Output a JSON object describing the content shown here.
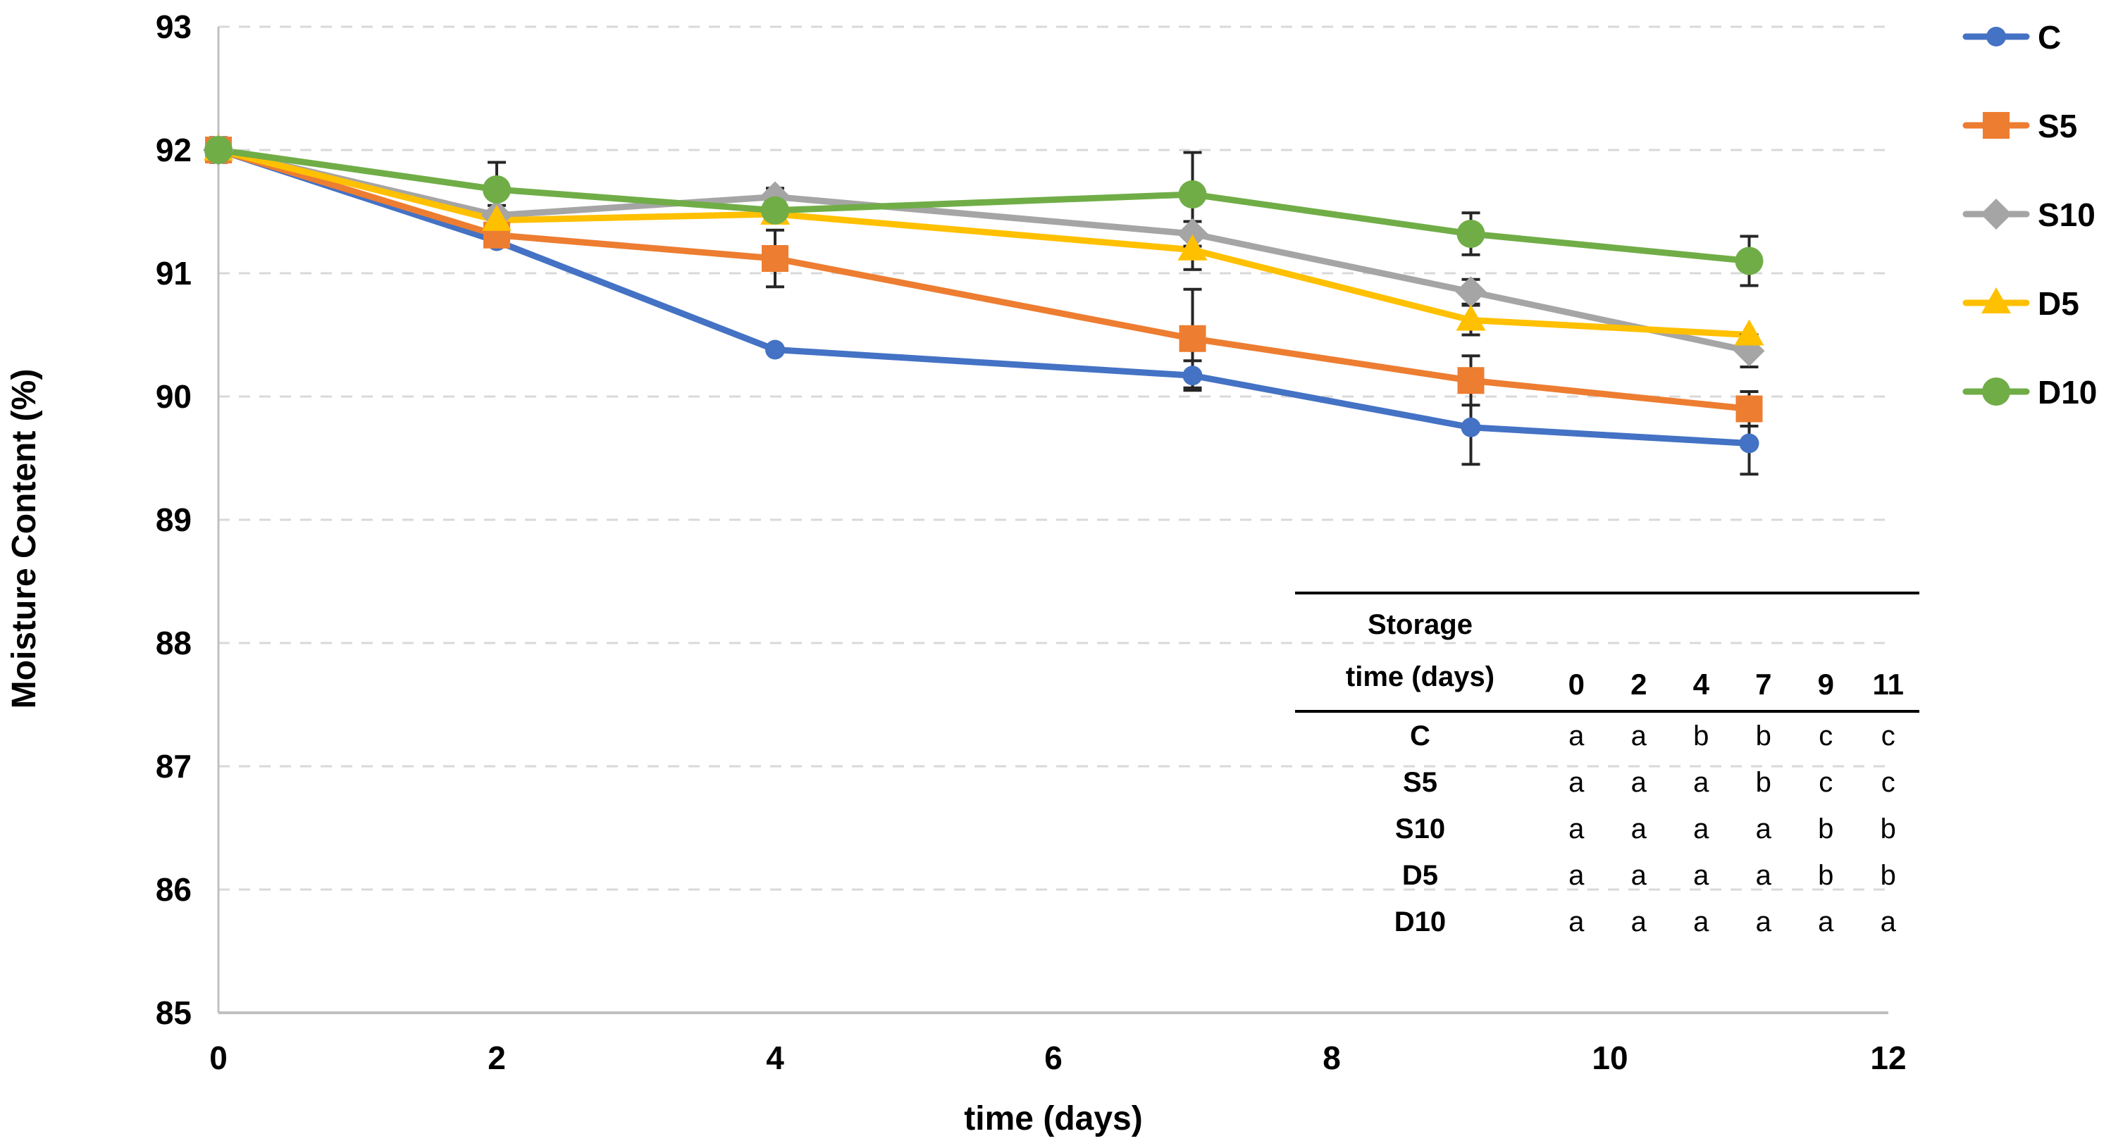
{
  "chart_data": {
    "type": "line",
    "title": "",
    "xlabel": "time (days)",
    "ylabel": "Moisture Content (%)",
    "xlim": [
      0,
      12
    ],
    "ylim": [
      85,
      93
    ],
    "x_ticks": [
      "0",
      "2",
      "4",
      "6",
      "8",
      "10",
      "12"
    ],
    "y_ticks": [
      "85",
      "86",
      "87",
      "88",
      "89",
      "90",
      "91",
      "92",
      "93"
    ],
    "grid": "horizontal-dashed",
    "legend_position": "right",
    "x": [
      0,
      2,
      4,
      7,
      9,
      11
    ],
    "series": [
      {
        "name": "C",
        "marker": "circle",
        "color": "#4472C4",
        "values": [
          92.0,
          91.26,
          90.38,
          90.17,
          89.75,
          89.62
        ],
        "errors": [
          0.1,
          0.0,
          0.0,
          0.12,
          0.3,
          0.25
        ]
      },
      {
        "name": "S5",
        "marker": "square",
        "color": "#ED7D31",
        "values": [
          92.0,
          91.31,
          91.12,
          90.47,
          90.13,
          89.9
        ],
        "errors": [
          0.1,
          0.0,
          0.23,
          0.4,
          0.2,
          0.14
        ]
      },
      {
        "name": "S10",
        "marker": "diamond",
        "color": "#A5A5A5",
        "values": [
          92.0,
          91.47,
          91.62,
          91.32,
          90.85,
          90.37
        ],
        "errors": [
          0.05,
          0.08,
          0.07,
          0.1,
          0.1,
          0.13
        ]
      },
      {
        "name": "D5",
        "marker": "triangle",
        "color": "#FFC000",
        "values": [
          92.0,
          91.43,
          91.48,
          91.19,
          90.62,
          90.5
        ],
        "errors": [
          0.05,
          0.05,
          0.07,
          0.16,
          0.12,
          0.0
        ]
      },
      {
        "name": "D10",
        "marker": "circle",
        "color": "#70AD47",
        "values": [
          92.0,
          91.68,
          91.51,
          91.64,
          91.32,
          91.1
        ],
        "errors": [
          0.1,
          0.22,
          0.07,
          0.34,
          0.17,
          0.2
        ]
      }
    ],
    "axis_color": "#BFBFBF",
    "gridline_color": "#D9D9D9",
    "error_bar_color": "#262626",
    "text_color": "#000000"
  },
  "inset_table": {
    "header_line1": "Storage",
    "header_line2": "time (days)",
    "columns": [
      "0",
      "2",
      "4",
      "7",
      "9",
      "11"
    ],
    "rows": [
      {
        "label": "C",
        "letters": [
          "a",
          "a",
          "b",
          "b",
          "c",
          "c"
        ]
      },
      {
        "label": "S5",
        "letters": [
          "a",
          "a",
          "a",
          "b",
          "c",
          "c"
        ]
      },
      {
        "label": "S10",
        "letters": [
          "a",
          "a",
          "a",
          "a",
          "b",
          "b"
        ]
      },
      {
        "label": "D5",
        "letters": [
          "a",
          "a",
          "a",
          "a",
          "b",
          "b"
        ]
      },
      {
        "label": "D10",
        "letters": [
          "a",
          "a",
          "a",
          "a",
          "a",
          "a"
        ]
      }
    ]
  }
}
